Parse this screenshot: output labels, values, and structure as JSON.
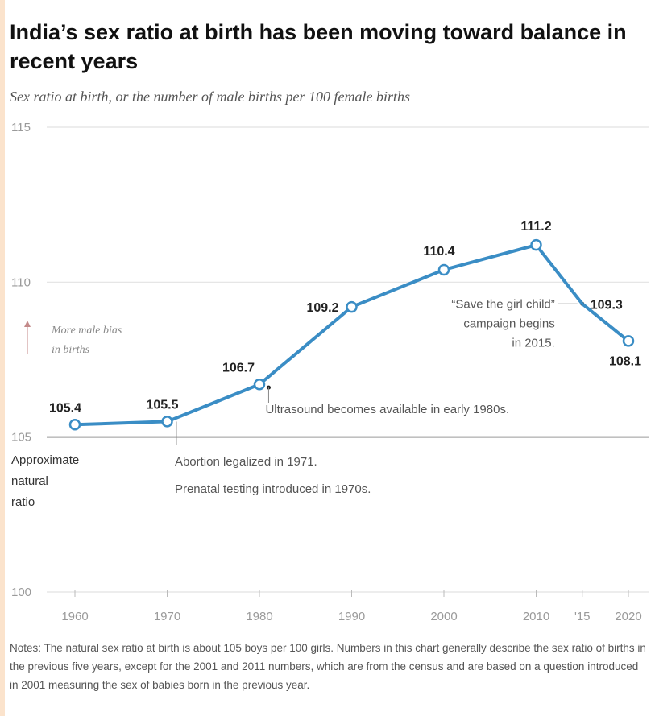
{
  "header": {
    "title": "India’s sex ratio at birth has been moving toward balance in recent years",
    "subtitle": "Sex ratio at birth, or the number of male births per 100 female births"
  },
  "chart_data": {
    "type": "line",
    "title": "India’s sex ratio at birth has been moving toward balance in recent years",
    "subtitle": "Sex ratio at birth, or the number of male births per 100 female births",
    "x": [
      1960,
      1970,
      1980,
      1990,
      2000,
      2010,
      2015,
      2020
    ],
    "series": [
      {
        "values": [
          105.4,
          105.5,
          106.7,
          109.2,
          110.4,
          111.2,
          109.3,
          108.1
        ]
      }
    ],
    "value_labels": [
      "105.4",
      "105.5",
      "106.7",
      "109.2",
      "110.4",
      "111.2",
      "109.3",
      "108.1"
    ],
    "x_tick_labels": [
      "1960",
      "1970",
      "1980",
      "1990",
      "2000",
      "2010",
      "'15",
      "2020"
    ],
    "y_ticks": [
      100,
      105,
      110,
      115
    ],
    "y_tick_labels": [
      "100",
      "105",
      "110",
      "115"
    ],
    "ylim": [
      100,
      115
    ],
    "xlim": [
      1960,
      2020
    ],
    "grid": true,
    "line_color": "#3a8dc5",
    "reference_label": [
      "Approximate",
      "natural",
      "ratio"
    ],
    "bias_label": [
      "More male bias",
      "in births"
    ],
    "annotations": {
      "ultrasound": {
        "text": "Ultrasound becomes available in early 1980s.",
        "x": 1981
      },
      "abortion": {
        "text": "Abortion legalized in 1971.",
        "x": 1971
      },
      "prenatal": {
        "text": "Prenatal testing introduced in 1970s.",
        "x": 1971
      },
      "campaign": {
        "lines": [
          "“Save the girl child”",
          "campaign begins",
          "in 2015."
        ],
        "x": 2015
      }
    }
  },
  "notes": "Notes: The natural sex ratio at birth is about 105 boys per 100 girls. Numbers in this chart generally describe the sex ratio of births in the previous five years, except for the 2001 and 2011 numbers, which are from the census and are based on a question introduced in 2001 measuring the sex of babies born in the previous year."
}
